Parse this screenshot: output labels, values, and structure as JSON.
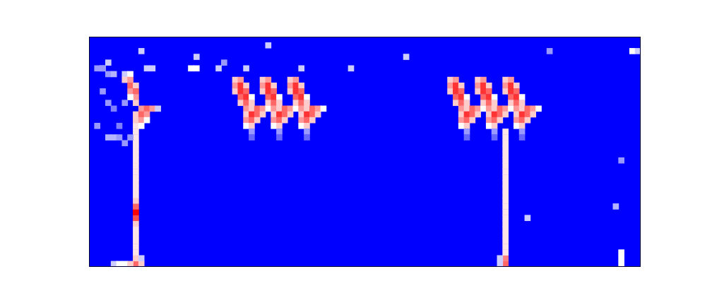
{
  "chart_data": {
    "type": "heatmap",
    "xlim": [
      -0.5,
      99.5
    ],
    "ylim": [
      -0.5,
      39.5
    ],
    "zlim": [
      0,
      1
    ],
    "grid": false,
    "tick_labels": false,
    "cells": [
      [
        8,
        0,
        0.8
      ],
      [
        8,
        1,
        0.6
      ],
      [
        8,
        2,
        0.55
      ],
      [
        8,
        3,
        0.55
      ],
      [
        8,
        4,
        0.55
      ],
      [
        8,
        5,
        0.55
      ],
      [
        8,
        6,
        0.55
      ],
      [
        8,
        7,
        0.6
      ],
      [
        8,
        8,
        0.85
      ],
      [
        8,
        9,
        1.0
      ],
      [
        8,
        10,
        0.8
      ],
      [
        8,
        11,
        0.6
      ],
      [
        8,
        12,
        0.55
      ],
      [
        8,
        13,
        0.55
      ],
      [
        8,
        14,
        0.55
      ],
      [
        8,
        15,
        0.55
      ],
      [
        8,
        16,
        0.55
      ],
      [
        8,
        17,
        0.55
      ],
      [
        8,
        18,
        0.55
      ],
      [
        8,
        19,
        0.55
      ],
      [
        8,
        20,
        0.55
      ],
      [
        8,
        21,
        0.55
      ],
      [
        8,
        22,
        0.55
      ],
      [
        8,
        23,
        0.55
      ],
      [
        8,
        24,
        0.55
      ],
      [
        8,
        25,
        0.6
      ],
      [
        8,
        26,
        0.6
      ],
      [
        6,
        33,
        0.4
      ],
      [
        7,
        33,
        0.5
      ],
      [
        6,
        32,
        0.6
      ],
      [
        7,
        32,
        0.7
      ],
      [
        7,
        31,
        0.8
      ],
      [
        8,
        31,
        0.6
      ],
      [
        7,
        30,
        0.7
      ],
      [
        8,
        30,
        0.8
      ],
      [
        8,
        29,
        0.7
      ],
      [
        7,
        29,
        0.5
      ],
      [
        8,
        28,
        0.6
      ],
      [
        9,
        27,
        0.7
      ],
      [
        10,
        27,
        0.8
      ],
      [
        11,
        27,
        0.7
      ],
      [
        12,
        27,
        0.4
      ],
      [
        9,
        26,
        0.8
      ],
      [
        10,
        26,
        0.7
      ],
      [
        9,
        25,
        0.7
      ],
      [
        10,
        25,
        0.5
      ],
      [
        9,
        24,
        0.5
      ],
      [
        1,
        34,
        0.3
      ],
      [
        2,
        34,
        0.35
      ],
      [
        3,
        33,
        0.3
      ],
      [
        4,
        33,
        0.35
      ],
      [
        2,
        30,
        0.3
      ],
      [
        3,
        28,
        0.3
      ],
      [
        4,
        27,
        0.25
      ],
      [
        1,
        24,
        0.3
      ],
      [
        3,
        22,
        0.35
      ],
      [
        4,
        22,
        0.35
      ],
      [
        5,
        22,
        0.3
      ],
      [
        6,
        21,
        0.3
      ],
      [
        7,
        22,
        0.3
      ],
      [
        5,
        24,
        0.25
      ],
      [
        6,
        28,
        0.3
      ],
      [
        4,
        0,
        0.4
      ],
      [
        5,
        0,
        0.5
      ],
      [
        6,
        0,
        0.5
      ],
      [
        7,
        0,
        0.6
      ],
      [
        9,
        0,
        0.6
      ],
      [
        9,
        1,
        0.4
      ],
      [
        9,
        37,
        0.4
      ],
      [
        19,
        36,
        0.4
      ],
      [
        24,
        35,
        0.3
      ],
      [
        18,
        34,
        0.5
      ],
      [
        19,
        34,
        0.5
      ],
      [
        23,
        34,
        0.4
      ],
      [
        28,
        34,
        0.4
      ],
      [
        38,
        34,
        0.4
      ],
      [
        47,
        34,
        0.4
      ],
      [
        32,
        38,
        0.4
      ],
      [
        57,
        36,
        0.4
      ],
      [
        83,
        37,
        0.3
      ],
      [
        98,
        37,
        0.5
      ],
      [
        99,
        37,
        0.4
      ],
      [
        3,
        35,
        0.4
      ],
      [
        10,
        34,
        0.4
      ],
      [
        11,
        34,
        0.4
      ],
      [
        2,
        34,
        0.3
      ],
      [
        26,
        32,
        0.6
      ],
      [
        27,
        32,
        0.7
      ],
      [
        26,
        31,
        0.7
      ],
      [
        27,
        31,
        0.9
      ],
      [
        28,
        31,
        0.6
      ],
      [
        26,
        30,
        0.6
      ],
      [
        27,
        30,
        0.9
      ],
      [
        28,
        30,
        0.8
      ],
      [
        27,
        29,
        0.8
      ],
      [
        28,
        29,
        0.9
      ],
      [
        29,
        29,
        0.5
      ],
      [
        27,
        28,
        0.6
      ],
      [
        28,
        28,
        0.8
      ],
      [
        29,
        28,
        0.6
      ],
      [
        28,
        27,
        0.7
      ],
      [
        29,
        27,
        0.6
      ],
      [
        30,
        27,
        0.8
      ],
      [
        31,
        27,
        0.7
      ],
      [
        32,
        27,
        0.5
      ],
      [
        28,
        26,
        0.6
      ],
      [
        29,
        26,
        0.9
      ],
      [
        30,
        26,
        0.8
      ],
      [
        31,
        26,
        0.6
      ],
      [
        28,
        25,
        0.7
      ],
      [
        29,
        25,
        0.8
      ],
      [
        30,
        25,
        0.6
      ],
      [
        28,
        24,
        0.5
      ],
      [
        29,
        24,
        0.6
      ],
      [
        29,
        23,
        0.3
      ],
      [
        29,
        22,
        0.2
      ],
      [
        31,
        32,
        0.6
      ],
      [
        32,
        32,
        0.7
      ],
      [
        31,
        31,
        0.7
      ],
      [
        32,
        31,
        0.9
      ],
      [
        33,
        31,
        0.6
      ],
      [
        31,
        30,
        0.6
      ],
      [
        32,
        30,
        0.9
      ],
      [
        33,
        30,
        0.8
      ],
      [
        32,
        29,
        0.8
      ],
      [
        33,
        29,
        0.9
      ],
      [
        34,
        29,
        0.5
      ],
      [
        32,
        28,
        0.6
      ],
      [
        33,
        28,
        0.8
      ],
      [
        34,
        28,
        0.6
      ],
      [
        33,
        27,
        0.7
      ],
      [
        34,
        27,
        0.6
      ],
      [
        35,
        27,
        0.8
      ],
      [
        36,
        27,
        0.7
      ],
      [
        37,
        27,
        0.5
      ],
      [
        33,
        26,
        0.6
      ],
      [
        34,
        26,
        0.9
      ],
      [
        35,
        26,
        0.8
      ],
      [
        36,
        26,
        0.6
      ],
      [
        33,
        25,
        0.7
      ],
      [
        34,
        25,
        0.8
      ],
      [
        35,
        25,
        0.6
      ],
      [
        33,
        24,
        0.5
      ],
      [
        34,
        24,
        0.6
      ],
      [
        34,
        23,
        0.3
      ],
      [
        34,
        22,
        0.2
      ],
      [
        36,
        32,
        0.6
      ],
      [
        37,
        32,
        0.7
      ],
      [
        36,
        31,
        0.7
      ],
      [
        37,
        31,
        0.9
      ],
      [
        38,
        31,
        0.6
      ],
      [
        36,
        30,
        0.6
      ],
      [
        37,
        30,
        0.9
      ],
      [
        38,
        30,
        0.8
      ],
      [
        37,
        29,
        0.8
      ],
      [
        38,
        29,
        0.9
      ],
      [
        39,
        29,
        0.5
      ],
      [
        37,
        28,
        0.6
      ],
      [
        38,
        28,
        0.8
      ],
      [
        39,
        28,
        0.6
      ],
      [
        38,
        27,
        0.7
      ],
      [
        39,
        27,
        0.6
      ],
      [
        40,
        27,
        0.8
      ],
      [
        41,
        27,
        0.7
      ],
      [
        42,
        27,
        0.5
      ],
      [
        38,
        26,
        0.6
      ],
      [
        39,
        26,
        0.9
      ],
      [
        40,
        26,
        0.8
      ],
      [
        41,
        26,
        0.6
      ],
      [
        38,
        25,
        0.7
      ],
      [
        39,
        25,
        0.8
      ],
      [
        40,
        25,
        0.6
      ],
      [
        38,
        24,
        0.5
      ],
      [
        39,
        24,
        0.6
      ],
      [
        39,
        23,
        0.3
      ],
      [
        39,
        22,
        0.2
      ],
      [
        65,
        32,
        0.6
      ],
      [
        66,
        32,
        0.7
      ],
      [
        65,
        31,
        0.7
      ],
      [
        66,
        31,
        0.9
      ],
      [
        67,
        31,
        0.6
      ],
      [
        65,
        30,
        0.6
      ],
      [
        66,
        30,
        0.9
      ],
      [
        67,
        30,
        0.8
      ],
      [
        66,
        29,
        0.8
      ],
      [
        67,
        29,
        0.9
      ],
      [
        68,
        29,
        0.5
      ],
      [
        66,
        28,
        0.6
      ],
      [
        67,
        28,
        0.8
      ],
      [
        68,
        28,
        0.6
      ],
      [
        67,
        27,
        0.7
      ],
      [
        68,
        27,
        0.6
      ],
      [
        69,
        27,
        0.8
      ],
      [
        70,
        27,
        0.7
      ],
      [
        71,
        27,
        0.5
      ],
      [
        67,
        26,
        0.6
      ],
      [
        68,
        26,
        0.9
      ],
      [
        69,
        26,
        0.8
      ],
      [
        70,
        26,
        0.6
      ],
      [
        67,
        25,
        0.7
      ],
      [
        68,
        25,
        0.8
      ],
      [
        69,
        25,
        0.6
      ],
      [
        67,
        24,
        0.5
      ],
      [
        68,
        24,
        0.6
      ],
      [
        68,
        23,
        0.3
      ],
      [
        68,
        22,
        0.2
      ],
      [
        70,
        32,
        0.6
      ],
      [
        71,
        32,
        0.7
      ],
      [
        70,
        31,
        0.7
      ],
      [
        71,
        31,
        0.9
      ],
      [
        72,
        31,
        0.6
      ],
      [
        70,
        30,
        0.6
      ],
      [
        71,
        30,
        0.9
      ],
      [
        72,
        30,
        0.8
      ],
      [
        71,
        29,
        0.8
      ],
      [
        72,
        29,
        0.9
      ],
      [
        73,
        29,
        0.5
      ],
      [
        71,
        28,
        0.6
      ],
      [
        72,
        28,
        0.8
      ],
      [
        73,
        28,
        0.6
      ],
      [
        72,
        27,
        0.7
      ],
      [
        73,
        27,
        0.6
      ],
      [
        74,
        27,
        0.8
      ],
      [
        75,
        27,
        0.7
      ],
      [
        76,
        27,
        0.5
      ],
      [
        72,
        26,
        0.6
      ],
      [
        73,
        26,
        0.9
      ],
      [
        74,
        26,
        0.8
      ],
      [
        75,
        26,
        0.6
      ],
      [
        72,
        25,
        0.7
      ],
      [
        73,
        25,
        0.8
      ],
      [
        74,
        25,
        0.6
      ],
      [
        72,
        24,
        0.5
      ],
      [
        73,
        24,
        0.6
      ],
      [
        73,
        23,
        0.3
      ],
      [
        73,
        22,
        0.2
      ],
      [
        75,
        32,
        0.6
      ],
      [
        76,
        32,
        0.7
      ],
      [
        75,
        31,
        0.7
      ],
      [
        76,
        31,
        0.9
      ],
      [
        77,
        31,
        0.6
      ],
      [
        75,
        30,
        0.6
      ],
      [
        76,
        30,
        0.9
      ],
      [
        77,
        30,
        0.8
      ],
      [
        76,
        29,
        0.8
      ],
      [
        77,
        29,
        0.9
      ],
      [
        78,
        29,
        0.5
      ],
      [
        76,
        28,
        0.6
      ],
      [
        77,
        28,
        0.8
      ],
      [
        78,
        28,
        0.6
      ],
      [
        77,
        27,
        0.7
      ],
      [
        78,
        27,
        0.6
      ],
      [
        79,
        27,
        0.8
      ],
      [
        80,
        27,
        0.7
      ],
      [
        81,
        27,
        0.5
      ],
      [
        77,
        26,
        0.6
      ],
      [
        78,
        26,
        0.9
      ],
      [
        79,
        26,
        0.8
      ],
      [
        80,
        26,
        0.6
      ],
      [
        77,
        25,
        0.7
      ],
      [
        78,
        25,
        0.8
      ],
      [
        79,
        25,
        0.6
      ],
      [
        77,
        24,
        0.5
      ],
      [
        78,
        24,
        0.6
      ],
      [
        78,
        23,
        0.3
      ],
      [
        78,
        22,
        0.2
      ],
      [
        75,
        0,
        0.8
      ],
      [
        75,
        1,
        0.75
      ],
      [
        75,
        2,
        0.55
      ],
      [
        75,
        3,
        0.55
      ],
      [
        75,
        4,
        0.55
      ],
      [
        75,
        5,
        0.55
      ],
      [
        75,
        6,
        0.55
      ],
      [
        75,
        7,
        0.55
      ],
      [
        75,
        8,
        0.55
      ],
      [
        75,
        9,
        0.55
      ],
      [
        75,
        10,
        0.55
      ],
      [
        75,
        11,
        0.55
      ],
      [
        75,
        12,
        0.55
      ],
      [
        75,
        13,
        0.55
      ],
      [
        75,
        14,
        0.55
      ],
      [
        75,
        15,
        0.55
      ],
      [
        75,
        16,
        0.55
      ],
      [
        75,
        17,
        0.55
      ],
      [
        75,
        18,
        0.55
      ],
      [
        75,
        19,
        0.55
      ],
      [
        75,
        20,
        0.55
      ],
      [
        75,
        21,
        0.55
      ],
      [
        75,
        22,
        0.55
      ],
      [
        75,
        23,
        0.55
      ],
      [
        74,
        0,
        0.4
      ],
      [
        74,
        1,
        0.4
      ],
      [
        96,
        0,
        0.5
      ],
      [
        96,
        1,
        0.5
      ],
      [
        96,
        2,
        0.5
      ],
      [
        79,
        8,
        0.4
      ],
      [
        95,
        10,
        0.35
      ],
      [
        96,
        18,
        0.3
      ]
    ]
  }
}
